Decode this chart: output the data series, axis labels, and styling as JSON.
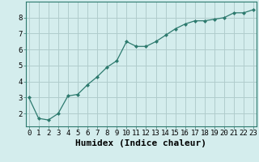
{
  "x": [
    0,
    1,
    2,
    3,
    4,
    5,
    6,
    7,
    8,
    9,
    10,
    11,
    12,
    13,
    14,
    15,
    16,
    17,
    18,
    19,
    20,
    21,
    22,
    23
  ],
  "y": [
    3.0,
    1.7,
    1.6,
    2.0,
    3.1,
    3.2,
    3.8,
    4.3,
    4.9,
    5.3,
    6.5,
    6.2,
    6.2,
    6.5,
    6.9,
    7.3,
    7.6,
    7.8,
    7.8,
    7.9,
    8.0,
    8.3,
    8.3,
    8.5
  ],
  "xlabel": "Humidex (Indice chaleur)",
  "xlim": [
    -0.3,
    23.3
  ],
  "ylim": [
    1.2,
    9.0
  ],
  "yticks": [
    2,
    3,
    4,
    5,
    6,
    7,
    8
  ],
  "xticks": [
    0,
    1,
    2,
    3,
    4,
    5,
    6,
    7,
    8,
    9,
    10,
    11,
    12,
    13,
    14,
    15,
    16,
    17,
    18,
    19,
    20,
    21,
    22,
    23
  ],
  "line_color": "#2d7a6e",
  "marker": "D",
  "marker_size": 2.0,
  "bg_color": "#d4eded",
  "grid_color": "#b0cccc",
  "xlabel_fontsize": 8,
  "tick_fontsize": 6.5
}
